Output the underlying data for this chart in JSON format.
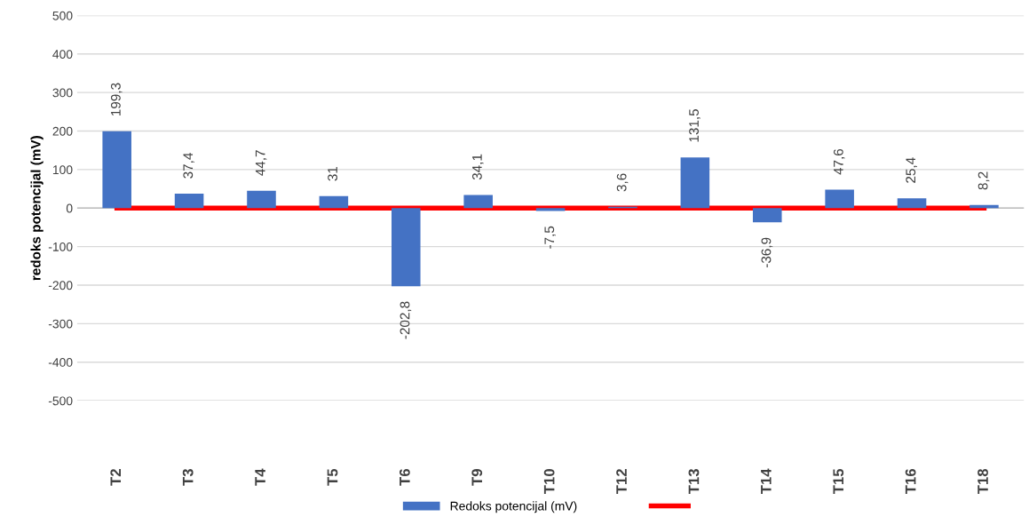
{
  "chart_data": {
    "type": "bar",
    "ylabel": "redoks potencijal (mV)",
    "categories": [
      "T2",
      "T3",
      "T4",
      "T5",
      "T6",
      "T9",
      "T10",
      "T12",
      "T13",
      "T14",
      "T15",
      "T16",
      "T18"
    ],
    "series": [
      {
        "name": "Redoks potencijal (mV)",
        "color": "#4472c4",
        "values": [
          199.3,
          37.4,
          44.7,
          31,
          -202.8,
          34.1,
          -7.5,
          3.6,
          131.5,
          -36.9,
          47.6,
          25.4,
          8.2
        ],
        "value_labels": [
          "199,3",
          "37,4",
          "44,7",
          "31",
          "-202,8",
          "34,1",
          "-7,5",
          "3,6",
          "131,5",
          "-36,9",
          "47,6",
          "25,4",
          "8,2"
        ]
      },
      {
        "type": "line",
        "color": "#ff0000",
        "values": [
          0,
          0,
          0,
          0,
          0,
          0,
          0,
          0,
          0,
          0,
          0,
          0,
          0
        ]
      }
    ],
    "ylim": [
      -500,
      500
    ],
    "yticks": [
      -500,
      -400,
      -300,
      -200,
      -100,
      0,
      100,
      200,
      300,
      400,
      500
    ],
    "grid": "y",
    "legend": "bottom"
  }
}
